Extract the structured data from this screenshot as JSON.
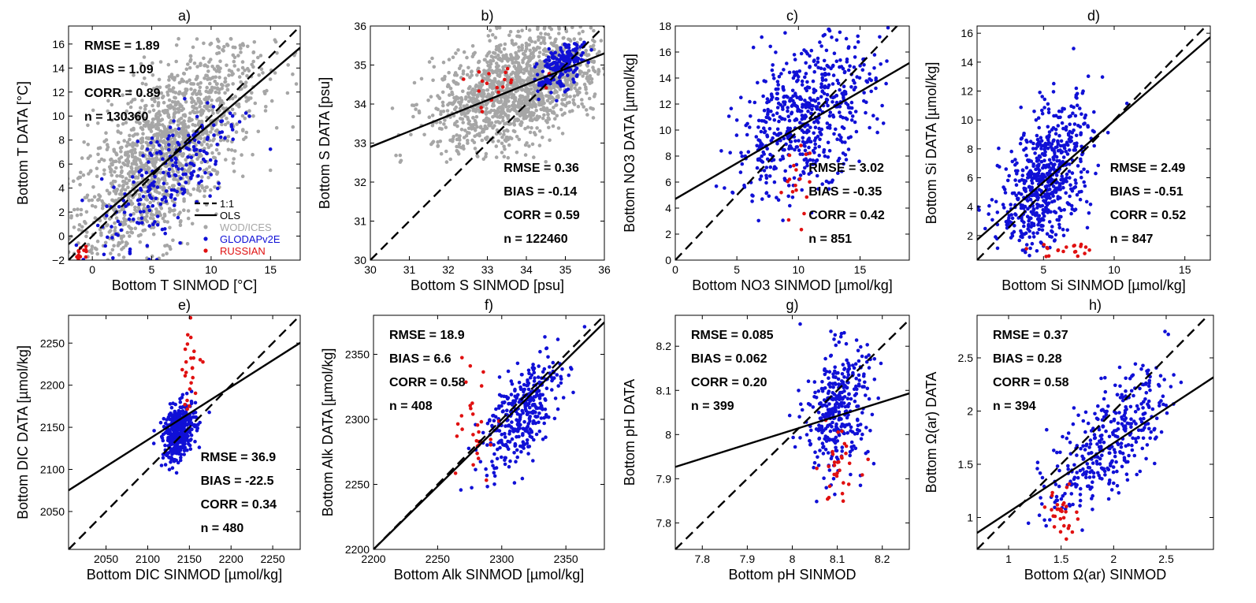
{
  "chart_data": [
    {
      "panel": "a)",
      "type": "scatter",
      "xlabel": "Bottom T SINMOD  [°C]",
      "ylabel": "Bottom T DATA [°C]",
      "xlim": [
        -2,
        17.5
      ],
      "ylim": [
        -2,
        17.5
      ],
      "xticks": [
        0,
        5,
        10,
        15
      ],
      "yticks": [
        -2,
        0,
        2,
        4,
        6,
        8,
        10,
        12,
        14,
        16
      ],
      "stats": [
        "RMSE = 1.89",
        "BIAS = 1.09",
        "CORR = 0.89",
        "n = 130360"
      ],
      "stats_pos": "top-left",
      "ols": {
        "slope": 0.84,
        "intercept": 1.0
      },
      "show_one_to_one": true,
      "legend": {
        "position": "bottom-right",
        "entries": [
          "1:1",
          "OLS",
          "WOD/ICES",
          "GLODAPv2E",
          "RUSSIAN"
        ]
      },
      "series": [
        {
          "name": "WOD/ICES",
          "color": "#a6a6a6",
          "n": 1600,
          "center": [
            6,
            6.8
          ],
          "spread": [
            4,
            3.5
          ],
          "slope": 0.85,
          "clip": [
            -2,
            16.5
          ]
        },
        {
          "name": "GLODAPv2E",
          "color": "#1010d6",
          "n": 240,
          "center": [
            6.5,
            5
          ],
          "spread": [
            3,
            2.5
          ],
          "slope": 0.9,
          "clip": [
            -2,
            12
          ]
        },
        {
          "name": "RUSSIAN",
          "color": "#e01010",
          "n": 14,
          "center": [
            -0.8,
            -1.2
          ],
          "spread": [
            0.4,
            0.4
          ],
          "slope": 0.8,
          "clip": [
            -2,
            1
          ]
        }
      ]
    },
    {
      "panel": "b)",
      "type": "scatter",
      "xlabel": "Bottom S SINMOD  [psu]",
      "ylabel": "Bottom S DATA [psu]",
      "xlim": [
        30,
        36
      ],
      "ylim": [
        30,
        36
      ],
      "xticks": [
        30,
        31,
        32,
        33,
        34,
        35,
        36
      ],
      "yticks": [
        30,
        31,
        32,
        33,
        34,
        35,
        36
      ],
      "stats": [
        "RMSE = 0.36",
        "BIAS = -0.14",
        "CORR = 0.59",
        "n = 122460"
      ],
      "stats_pos": "bottom-right",
      "ols": {
        "slope": 0.4,
        "intercept": 20.9
      },
      "show_one_to_one": true,
      "series": [
        {
          "name": "WOD/ICES",
          "color": "#a6a6a6",
          "n": 1500,
          "center": [
            33.8,
            34.4
          ],
          "spread": [
            1.1,
            0.7
          ],
          "slope": 0.35,
          "clip": [
            32.5,
            36
          ]
        },
        {
          "name": "GLODAPv2E",
          "color": "#1010d6",
          "n": 200,
          "center": [
            34.9,
            35.0
          ],
          "spread": [
            0.3,
            0.3
          ],
          "slope": 0.6,
          "clip": [
            33.5,
            35.6
          ]
        },
        {
          "name": "RUSSIAN",
          "color": "#e01010",
          "n": 20,
          "center": [
            33.3,
            34.5
          ],
          "spread": [
            0.5,
            0.3
          ],
          "slope": 0.1,
          "clip": [
            33.8,
            35
          ]
        }
      ]
    },
    {
      "panel": "c)",
      "type": "scatter",
      "xlabel": "Bottom NO3 SINMOD  [µmol/kg]",
      "ylabel": "Bottom NO3 DATA [µmol/kg]",
      "xlim": [
        0,
        19
      ],
      "ylim": [
        0,
        18
      ],
      "xticks": [
        0,
        5,
        10,
        15
      ],
      "yticks": [
        0,
        2,
        4,
        6,
        8,
        10,
        12,
        14,
        16,
        18
      ],
      "stats": [
        "RMSE = 3.02",
        "BIAS = -0.35",
        "CORR = 0.42",
        "n = 851"
      ],
      "stats_pos": "bottom-right",
      "ols": {
        "slope": 0.55,
        "intercept": 4.7
      },
      "show_one_to_one": true,
      "series": [
        {
          "name": "GLODAPv2E",
          "color": "#1010d6",
          "n": 600,
          "center": [
            10.5,
            11
          ],
          "spread": [
            2.8,
            2.6
          ],
          "slope": 0.5,
          "clip": [
            0,
            18
          ]
        },
        {
          "name": "RUSSIAN",
          "color": "#e01010",
          "n": 18,
          "center": [
            9.5,
            6
          ],
          "spread": [
            0.7,
            1.5
          ],
          "slope": 0.3,
          "clip": [
            0,
            18
          ]
        }
      ]
    },
    {
      "panel": "d)",
      "type": "scatter",
      "xlabel": "Bottom Si SINMOD  [µmol/kg]",
      "ylabel": "Bottom Si DATA [µmol/kg]",
      "xlim": [
        0.3,
        16.8
      ],
      "ylim": [
        0.3,
        16.5
      ],
      "xticks": [
        5,
        10,
        15
      ],
      "yticks": [
        2,
        4,
        6,
        8,
        10,
        12,
        14,
        16
      ],
      "stats": [
        "RMSE = 2.49",
        "BIAS = -0.51",
        "CORR = 0.52",
        "n = 847"
      ],
      "stats_pos": "bottom-right",
      "ols": {
        "slope": 0.85,
        "intercept": 1.45
      },
      "show_one_to_one": true,
      "series": [
        {
          "name": "GLODAPv2E",
          "color": "#1010d6",
          "n": 650,
          "center": [
            5.2,
            5.8
          ],
          "spread": [
            1.6,
            2.3
          ],
          "slope": 0.8,
          "clip": [
            0.5,
            16.3
          ]
        },
        {
          "name": "RUSSIAN",
          "color": "#e01010",
          "n": 20,
          "center": [
            6.8,
            1.0
          ],
          "spread": [
            1.3,
            0.3
          ],
          "slope": 0.0,
          "clip": [
            0.5,
            8
          ]
        }
      ]
    },
    {
      "panel": "e)",
      "type": "scatter",
      "xlabel": "Bottom DIC SINMOD  [µmol/kg]",
      "ylabel": "Bottom DIC DATA [µmol/kg]",
      "xlim": [
        2005,
        2283
      ],
      "ylim": [
        2005,
        2283
      ],
      "xticks": [
        2050,
        2100,
        2150,
        2200,
        2250
      ],
      "yticks": [
        2050,
        2100,
        2150,
        2200,
        2250
      ],
      "stats": [
        "RMSE = 36.9",
        "BIAS = -22.5",
        "CORR = 0.34",
        "n = 480"
      ],
      "stats_pos": "bottom-right",
      "ols": {
        "slope": 0.63,
        "intercept": 812
      },
      "show_one_to_one": true,
      "series": [
        {
          "name": "GLODAPv2E",
          "color": "#1010d6",
          "n": 380,
          "center": [
            2138,
            2145
          ],
          "spread": [
            10,
            16
          ],
          "slope": 0.6,
          "clip": [
            2005,
            2283
          ]
        },
        {
          "name": "RUSSIAN",
          "color": "#e01010",
          "n": 25,
          "center": [
            2152,
            2220
          ],
          "spread": [
            8,
            25
          ],
          "slope": 0.3,
          "clip": [
            2005,
            2283
          ]
        }
      ]
    },
    {
      "panel": "f)",
      "type": "scatter",
      "xlabel": "Bottom Alk SINMOD  [µmol/kg]",
      "ylabel": "Bottom Alk DATA [µmol/kg]",
      "xlim": [
        2200,
        2380
      ],
      "ylim": [
        2200,
        2380
      ],
      "xticks": [
        2200,
        2250,
        2300,
        2350
      ],
      "yticks": [
        2200,
        2250,
        2300,
        2350
      ],
      "stats": [
        "RMSE = 18.9",
        "BIAS = 6.6",
        "CORR = 0.58",
        "n = 408"
      ],
      "stats_pos": "top-left",
      "ols": {
        "slope": 0.97,
        "intercept": 66
      },
      "show_one_to_one": true,
      "series": [
        {
          "name": "GLODAPv2E",
          "color": "#1010d6",
          "n": 360,
          "center": [
            2315,
            2305
          ],
          "spread": [
            15,
            18
          ],
          "slope": 0.9,
          "clip": [
            2200,
            2380
          ]
        },
        {
          "name": "RUSSIAN",
          "color": "#e01010",
          "n": 30,
          "center": [
            2280,
            2290
          ],
          "spread": [
            7,
            20
          ],
          "slope": 0.2,
          "clip": [
            2200,
            2380
          ]
        }
      ]
    },
    {
      "panel": "g)",
      "type": "scatter",
      "xlabel": "Bottom pH SINMOD",
      "ylabel": "Bottom pH DATA",
      "xlim": [
        7.74,
        8.26
      ],
      "ylim": [
        7.74,
        8.27
      ],
      "xticks": [
        7.8,
        7.9,
        8,
        8.1,
        8.2
      ],
      "yticks": [
        7.8,
        7.9,
        8,
        8.1,
        8.2
      ],
      "stats": [
        "RMSE = 0.085",
        "BIAS = 0.062",
        "CORR = 0.20",
        "n = 399"
      ],
      "stats_pos": "top-left",
      "ols": {
        "slope": 0.32,
        "intercept": 5.45
      },
      "show_one_to_one": true,
      "series": [
        {
          "name": "GLODAPv2E",
          "color": "#1010d6",
          "n": 360,
          "center": [
            8.1,
            8.06
          ],
          "spread": [
            0.035,
            0.07
          ],
          "slope": 0.4,
          "clip": [
            7.74,
            8.27
          ]
        },
        {
          "name": "RUSSIAN",
          "color": "#e01010",
          "n": 30,
          "center": [
            8.1,
            7.93
          ],
          "spread": [
            0.025,
            0.04
          ],
          "slope": 0.0,
          "clip": [
            7.74,
            8.27
          ]
        }
      ]
    },
    {
      "panel": "h)",
      "type": "scatter",
      "xlabel": "Bottom Ω(ar) SINMOD",
      "ylabel": "Bottom Ω(ar) DATA",
      "xlim": [
        0.7,
        2.95
      ],
      "ylim": [
        0.7,
        2.9
      ],
      "xticks": [
        1,
        1.5,
        2,
        2.5
      ],
      "yticks": [
        1,
        1.5,
        2,
        2.5
      ],
      "stats": [
        "RMSE = 0.37",
        "BIAS = 0.28",
        "CORR = 0.58",
        "n = 394"
      ],
      "stats_pos": "top-left",
      "ols": {
        "slope": 0.65,
        "intercept": 0.4
      },
      "show_one_to_one": true,
      "series": [
        {
          "name": "GLODAPv2E",
          "color": "#1010d6",
          "n": 360,
          "center": [
            1.95,
            1.72
          ],
          "spread": [
            0.28,
            0.25
          ],
          "slope": 0.8,
          "clip": [
            0.7,
            2.9
          ]
        },
        {
          "name": "RUSSIAN",
          "color": "#e01010",
          "n": 30,
          "center": [
            1.52,
            1.05
          ],
          "spread": [
            0.07,
            0.12
          ],
          "slope": 0.2,
          "clip": [
            0.7,
            2.9
          ]
        }
      ]
    }
  ]
}
